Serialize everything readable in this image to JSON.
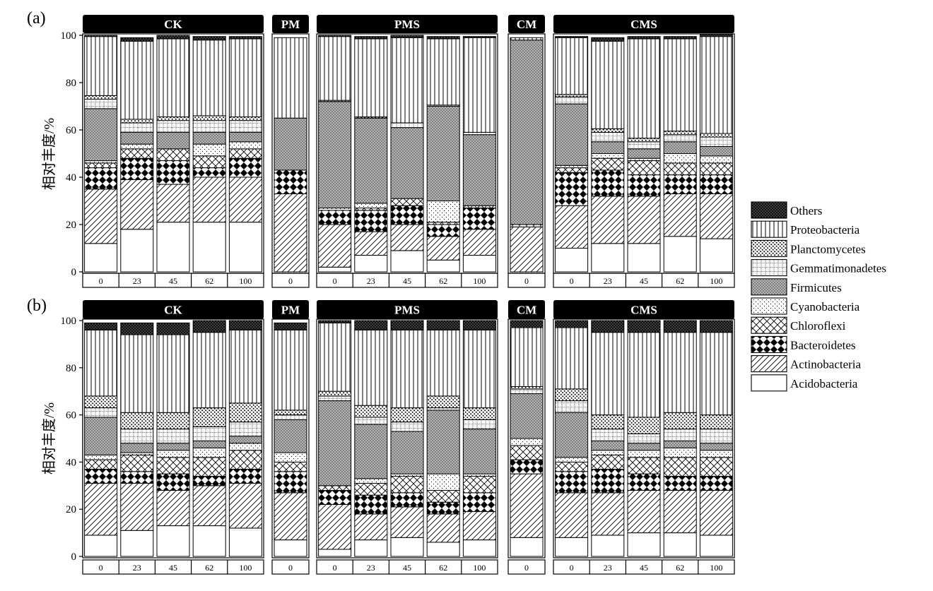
{
  "chart_data": [
    {
      "panel_label": "(a)",
      "type": "stacked-bar",
      "ylabel": "相对丰度/%",
      "ylim": [
        0,
        100
      ],
      "yticks": [
        0,
        20,
        40,
        60,
        80,
        100
      ],
      "series": [
        "Acidobacteria",
        "Actinobacteria",
        "Bacteroidetes",
        "Chloroflexi",
        "Cyanobacteria",
        "Firmicutes",
        "Gemmatimonadetes",
        "Planctomycetes",
        "Proteobacteria",
        "Others"
      ],
      "groups": [
        {
          "name": "CK",
          "bars": [
            {
              "x": "0",
              "values": [
                12,
                23,
                9,
                2,
                1,
                22,
                4,
                1.5,
                25,
                0.5
              ]
            },
            {
              "x": "23",
              "values": [
                18,
                21,
                9,
                4,
                2,
                5,
                4,
                1.5,
                33,
                1.5
              ]
            },
            {
              "x": "45",
              "values": [
                21,
                16,
                10,
                5,
                0,
                7,
                5,
                1.5,
                33,
                1.5
              ]
            },
            {
              "x": "62",
              "values": [
                21,
                19,
                4,
                5,
                5,
                5,
                5,
                2,
                32,
                1.5
              ]
            },
            {
              "x": "100",
              "values": [
                21,
                19,
                8,
                4,
                3,
                4,
                5,
                1.5,
                33,
                1
              ]
            }
          ]
        },
        {
          "name": "PM",
          "bars": [
            {
              "x": "0",
              "values": [
                0,
                33,
                10,
                0,
                0,
                22,
                0,
                0,
                34,
                0
              ]
            }
          ]
        },
        {
          "name": "PMS",
          "bars": [
            {
              "x": "0",
              "values": [
                2,
                18,
                6,
                0,
                1,
                45,
                0,
                0.5,
                27,
                0.5
              ]
            },
            {
              "x": "23",
              "values": [
                7,
                10,
                9,
                1,
                2,
                36,
                0,
                0.5,
                33,
                1
              ]
            },
            {
              "x": "45",
              "values": [
                9,
                11,
                8,
                3,
                0,
                30,
                2,
                0,
                36,
                1
              ]
            },
            {
              "x": "62",
              "values": [
                5,
                10,
                5,
                1,
                9,
                40,
                0,
                0.5,
                28,
                1
              ]
            },
            {
              "x": "100",
              "values": [
                7,
                11,
                9,
                1,
                0,
                30,
                1,
                0,
                40,
                0.5
              ]
            }
          ]
        },
        {
          "name": "CM",
          "bars": [
            {
              "x": "0",
              "values": [
                0,
                19,
                1,
                0,
                0,
                78,
                0,
                0,
                1,
                0
              ]
            }
          ]
        },
        {
          "name": "CMS",
          "bars": [
            {
              "x": "0",
              "values": [
                10,
                18,
                14,
                2,
                1,
                26,
                3,
                1,
                24,
                0.5
              ]
            },
            {
              "x": "23",
              "values": [
                12,
                20,
                11,
                5,
                2,
                5,
                4,
                1.5,
                37,
                1.5
              ]
            },
            {
              "x": "45",
              "values": [
                12,
                20,
                9,
                6,
                1,
                4,
                3,
                1.5,
                42,
                1
              ]
            },
            {
              "x": "62",
              "values": [
                15,
                18,
                8,
                5,
                4,
                5,
                3,
                1.5,
                39,
                1
              ]
            },
            {
              "x": "100",
              "values": [
                14,
                19,
                8,
                5,
                3,
                4,
                4,
                1.5,
                41,
                1
              ]
            }
          ]
        }
      ]
    },
    {
      "panel_label": "(b)",
      "type": "stacked-bar",
      "ylabel": "相对丰度/%",
      "ylim": [
        0,
        100
      ],
      "yticks": [
        0,
        20,
        40,
        60,
        80,
        100
      ],
      "series": [
        "Acidobacteria",
        "Actinobacteria",
        "Bacteroidetes",
        "Chloroflexi",
        "Cyanobacteria",
        "Firmicutes",
        "Gemmatimonadetes",
        "Planctomycetes",
        "Proteobacteria",
        "Others"
      ],
      "groups": [
        {
          "name": "CK",
          "bars": [
            {
              "x": "0",
              "values": [
                9,
                22,
                6,
                4,
                2,
                16,
                4,
                5,
                28,
                3
              ]
            },
            {
              "x": "23",
              "values": [
                11,
                20,
                5,
                7,
                1,
                4,
                6,
                7,
                33,
                5
              ]
            },
            {
              "x": "45",
              "values": [
                13,
                15,
                7,
                7,
                3,
                3,
                6,
                7,
                33,
                5
              ]
            },
            {
              "x": "62",
              "values": [
                13,
                17,
                4,
                8,
                4,
                3,
                6,
                8,
                32,
                5
              ]
            },
            {
              "x": "100",
              "values": [
                12,
                19,
                6,
                8,
                3,
                3,
                6,
                8,
                31,
                4
              ]
            }
          ]
        },
        {
          "name": "PM",
          "bars": [
            {
              "x": "0",
              "values": [
                7,
                20,
                9,
                4,
                4,
                14,
                2,
                2,
                34,
                3
              ]
            }
          ]
        },
        {
          "name": "PMS",
          "bars": [
            {
              "x": "0",
              "values": [
                3,
                19,
                6,
                2,
                0,
                36,
                2,
                2,
                29,
                1
              ]
            },
            {
              "x": "23",
              "values": [
                7,
                11,
                8,
                5,
                2,
                23,
                3,
                5,
                32,
                4
              ]
            },
            {
              "x": "45",
              "values": [
                8,
                13,
                6,
                7,
                1,
                18,
                4,
                6,
                33,
                4
              ]
            },
            {
              "x": "62",
              "values": [
                6,
                12,
                5,
                5,
                7,
                27,
                1,
                5,
                28,
                4
              ]
            },
            {
              "x": "100",
              "values": [
                7,
                12,
                8,
                7,
                1,
                19,
                4,
                5,
                33,
                4
              ]
            }
          ]
        },
        {
          "name": "CM",
          "bars": [
            {
              "x": "0",
              "values": [
                8,
                27,
                6,
                6,
                3,
                19,
                2,
                1,
                25,
                3
              ]
            }
          ]
        },
        {
          "name": "CMS",
          "bars": [
            {
              "x": "0",
              "values": [
                8,
                19,
                9,
                4,
                2,
                19,
                5,
                5,
                26,
                3
              ]
            },
            {
              "x": "23",
              "values": [
                9,
                18,
                10,
                6,
                2,
                4,
                5,
                6,
                35,
                5
              ]
            },
            {
              "x": "45",
              "values": [
                10,
                18,
                7,
                7,
                3,
                3,
                4,
                7,
                36,
                5
              ]
            },
            {
              "x": "62",
              "values": [
                10,
                18,
                6,
                8,
                4,
                3,
                5,
                7,
                34,
                5
              ]
            },
            {
              "x": "100",
              "values": [
                9,
                19,
                6,
                8,
                3,
                3,
                6,
                6,
                35,
                5
              ]
            }
          ]
        }
      ]
    }
  ],
  "legend": [
    {
      "label": "Others",
      "pattern": "others"
    },
    {
      "label": "Proteobacteria",
      "pattern": "proteo"
    },
    {
      "label": "Planctomycetes",
      "pattern": "plancto"
    },
    {
      "label": "Gemmatimonadetes",
      "pattern": "gemma"
    },
    {
      "label": "Firmicutes",
      "pattern": "firmi"
    },
    {
      "label": "Cyanobacteria",
      "pattern": "cyano"
    },
    {
      "label": "Chloroflexi",
      "pattern": "chloro"
    },
    {
      "label": "Bacteroidetes",
      "pattern": "bactero"
    },
    {
      "label": "Actinobacteria",
      "pattern": "actino"
    },
    {
      "label": "Acidobacteria",
      "pattern": "acido"
    }
  ],
  "series_patterns": {
    "Acidobacteria": "acido",
    "Actinobacteria": "actino",
    "Bacteroidetes": "bactero",
    "Chloroflexi": "chloro",
    "Cyanobacteria": "cyano",
    "Firmicutes": "firmi",
    "Gemmatimonadetes": "gemma",
    "Planctomycetes": "plancto",
    "Proteobacteria": "proteo",
    "Others": "others"
  }
}
